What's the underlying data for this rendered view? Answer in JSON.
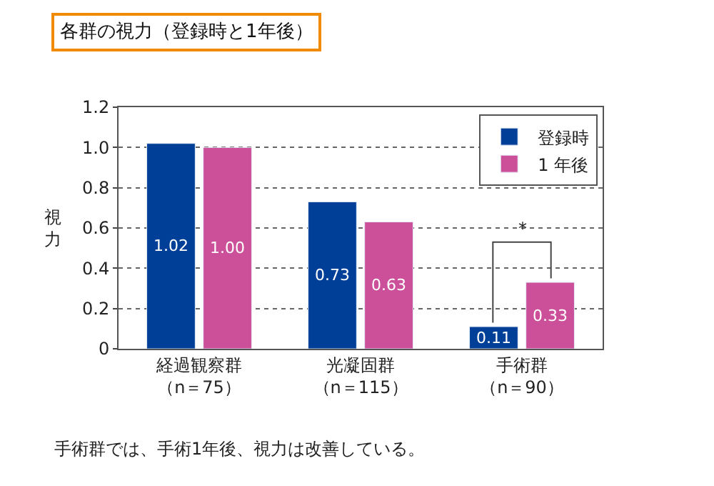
{
  "chart_data": {
    "type": "bar",
    "title": "各群の視力（登録時と1年後）",
    "ylabel": "視力",
    "categories": [
      "経過観察群（n＝75）",
      "光凝固群（n＝115）",
      "手術群（n＝90）"
    ],
    "series": [
      {
        "name": "登録時",
        "color": "#003f98",
        "values": [
          1.02,
          0.73,
          0.11
        ],
        "value_labels": [
          "1.02",
          "0.73",
          "0.11"
        ]
      },
      {
        "name": "1 年後",
        "color": "#cc4f9a",
        "values": [
          1.0,
          0.63,
          0.33
        ],
        "value_labels": [
          "1.00",
          "0.63",
          "0.33"
        ]
      }
    ],
    "ylim": [
      0,
      1.2
    ],
    "yticks": [
      0,
      {
        "value": 0.2,
        "label": "0.2"
      },
      {
        "value": 0.4,
        "label": "0.4"
      },
      {
        "value": 0.6,
        "label": "0.6"
      },
      {
        "value": 0.8,
        "label": "0.8"
      },
      {
        "value": 1.0,
        "label": "1.0"
      },
      {
        "value": 1.2,
        "label": "1.2"
      }
    ],
    "grid": "y",
    "legend": "top right",
    "annotations": [
      "*",
      "手術群では、手術1年後、視力は改善している。"
    ]
  }
}
